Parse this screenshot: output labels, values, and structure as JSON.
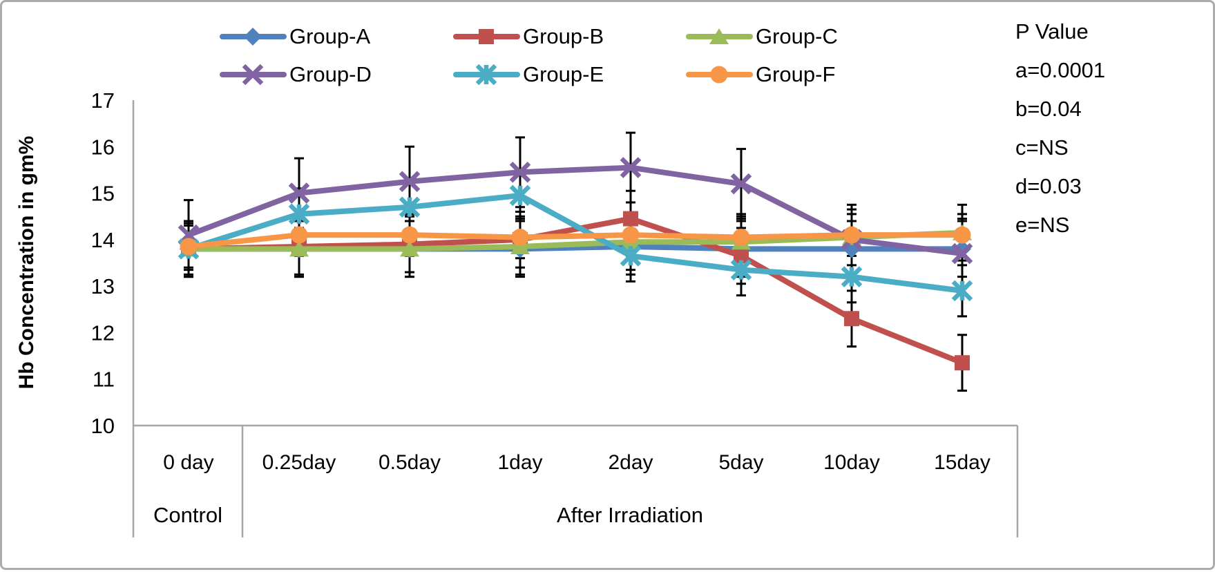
{
  "figure": {
    "border_color": "#ABABAB",
    "background": "#FFFFFF",
    "axis_text_color": "#000000"
  },
  "p_value_panel": {
    "title": "P Value",
    "lines": [
      "a=0.0001",
      "b=0.04",
      "c=NS",
      "d=0.03",
      "e=NS"
    ]
  },
  "chart_data": {
    "type": "line",
    "title": "",
    "xlabel": "",
    "ylabel": "Hb Concentration in gm%",
    "ylim": [
      10,
      17
    ],
    "yticks": [
      10,
      11,
      12,
      13,
      14,
      15,
      16,
      17
    ],
    "grid": false,
    "legend_position": "top",
    "axis_color": "#A6A6A6",
    "error_bar_color": "#000000",
    "categories": [
      "0 day",
      "0.25day",
      "0.5day",
      "1day",
      "2day",
      "5day",
      "10day",
      "15day"
    ],
    "category_groups": [
      {
        "label": "Control",
        "from": 0,
        "to": 0
      },
      {
        "label": "After Irradiation",
        "from": 1,
        "to": 7
      }
    ],
    "series": [
      {
        "name": "Group-A",
        "color": "#4F81BD",
        "marker": "diamond",
        "error": 0.6,
        "values": [
          13.8,
          13.8,
          13.8,
          13.8,
          13.85,
          13.8,
          13.8,
          13.8
        ]
      },
      {
        "name": "Group-B",
        "color": "#C0504D",
        "marker": "square",
        "error": 0.6,
        "values": [
          13.8,
          13.85,
          13.9,
          14.0,
          14.45,
          13.65,
          12.3,
          11.35
        ]
      },
      {
        "name": "Group-C",
        "color": "#9BBB59",
        "marker": "triangle",
        "error": 0.6,
        "values": [
          13.8,
          13.8,
          13.8,
          13.85,
          13.95,
          13.95,
          14.05,
          14.15
        ]
      },
      {
        "name": "Group-D",
        "color": "#8064A2",
        "marker": "x",
        "error": 0.75,
        "values": [
          14.1,
          15.0,
          15.25,
          15.45,
          15.55,
          15.2,
          14.0,
          13.7
        ]
      },
      {
        "name": "Group-E",
        "color": "#4BACC6",
        "marker": "asterisk",
        "error": 0.55,
        "values": [
          13.8,
          14.55,
          14.7,
          14.95,
          13.65,
          13.35,
          13.2,
          12.9
        ]
      },
      {
        "name": "Group-F",
        "color": "#F79646",
        "marker": "circle",
        "error": 0.45,
        "values": [
          13.85,
          14.1,
          14.1,
          14.05,
          14.1,
          14.05,
          14.1,
          14.1
        ]
      }
    ]
  }
}
